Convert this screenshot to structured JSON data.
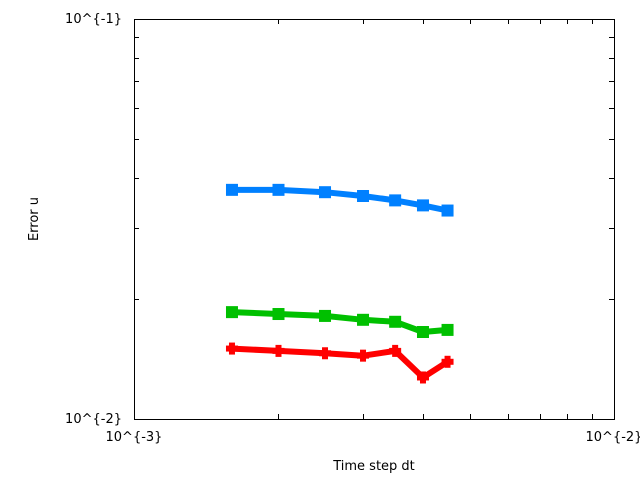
{
  "chart_data": {
    "type": "line",
    "xscale": "log",
    "yscale": "log",
    "xlim": [
      0.001,
      0.01
    ],
    "ylim": [
      0.01,
      0.1
    ],
    "xlabel": "Time step dt",
    "ylabel": "Error u",
    "xticks": [
      {
        "value": 0.001,
        "label": "10^{-3}"
      },
      {
        "value": 0.01,
        "label": "10^{-2}"
      }
    ],
    "yticks": [
      {
        "value": 0.01,
        "label": "10^{-2}"
      },
      {
        "value": 0.1,
        "label": "10^{-1}"
      }
    ],
    "grid": false,
    "legend": "none",
    "x": [
      0.0016,
      0.002,
      0.0025,
      0.003,
      0.0035,
      0.004,
      0.0045
    ],
    "series": [
      {
        "color": "#0080ff",
        "marker": "square",
        "values": [
          0.0374,
          0.0374,
          0.0369,
          0.0361,
          0.0352,
          0.0342,
          0.0332
        ]
      },
      {
        "color": "#00c000",
        "marker": "square",
        "values": [
          0.0185,
          0.0183,
          0.0181,
          0.0177,
          0.0175,
          0.0165,
          0.0167
        ]
      },
      {
        "color": "#ff0000",
        "marker": "plus",
        "values": [
          0.015,
          0.0148,
          0.0146,
          0.0144,
          0.0148,
          0.0127,
          0.0139
        ]
      }
    ]
  }
}
